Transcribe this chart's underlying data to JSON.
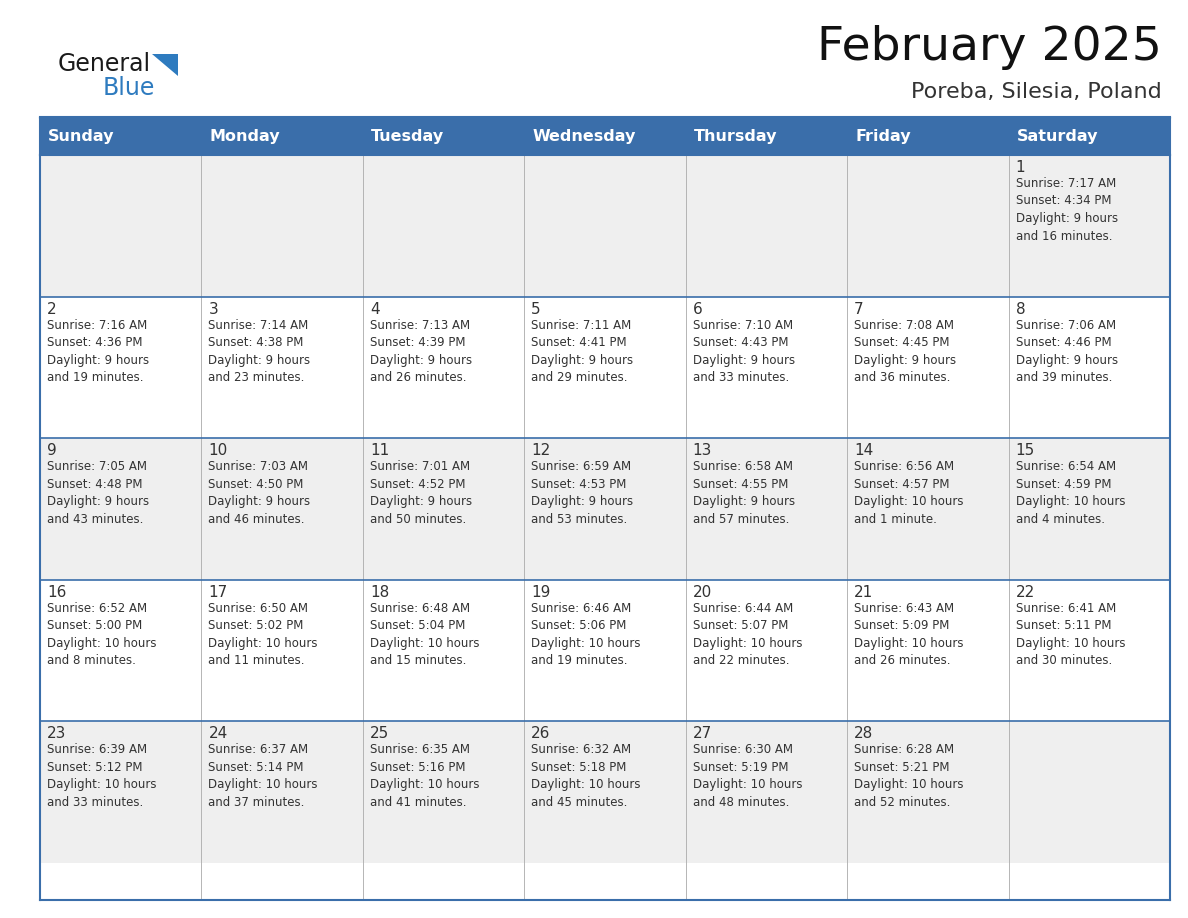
{
  "title": "February 2025",
  "subtitle": "Poreba, Silesia, Poland",
  "header_bg": "#3A6EAA",
  "header_text_color": "#FFFFFF",
  "cell_bg_light": "#EFEFEF",
  "cell_bg_white": "#FFFFFF",
  "border_color": "#3A6EAA",
  "grid_color": "#AAAAAA",
  "day_names": [
    "Sunday",
    "Monday",
    "Tuesday",
    "Wednesday",
    "Thursday",
    "Friday",
    "Saturday"
  ],
  "text_color": "#333333",
  "day_number_color": "#333333",
  "logo_general_color": "#1a1a1a",
  "logo_blue_color": "#2E7BBF",
  "weeks": [
    [
      {
        "day": 0,
        "text": ""
      },
      {
        "day": 0,
        "text": ""
      },
      {
        "day": 0,
        "text": ""
      },
      {
        "day": 0,
        "text": ""
      },
      {
        "day": 0,
        "text": ""
      },
      {
        "day": 0,
        "text": ""
      },
      {
        "day": 1,
        "text": "Sunrise: 7:17 AM\nSunset: 4:34 PM\nDaylight: 9 hours\nand 16 minutes."
      }
    ],
    [
      {
        "day": 2,
        "text": "Sunrise: 7:16 AM\nSunset: 4:36 PM\nDaylight: 9 hours\nand 19 minutes."
      },
      {
        "day": 3,
        "text": "Sunrise: 7:14 AM\nSunset: 4:38 PM\nDaylight: 9 hours\nand 23 minutes."
      },
      {
        "day": 4,
        "text": "Sunrise: 7:13 AM\nSunset: 4:39 PM\nDaylight: 9 hours\nand 26 minutes."
      },
      {
        "day": 5,
        "text": "Sunrise: 7:11 AM\nSunset: 4:41 PM\nDaylight: 9 hours\nand 29 minutes."
      },
      {
        "day": 6,
        "text": "Sunrise: 7:10 AM\nSunset: 4:43 PM\nDaylight: 9 hours\nand 33 minutes."
      },
      {
        "day": 7,
        "text": "Sunrise: 7:08 AM\nSunset: 4:45 PM\nDaylight: 9 hours\nand 36 minutes."
      },
      {
        "day": 8,
        "text": "Sunrise: 7:06 AM\nSunset: 4:46 PM\nDaylight: 9 hours\nand 39 minutes."
      }
    ],
    [
      {
        "day": 9,
        "text": "Sunrise: 7:05 AM\nSunset: 4:48 PM\nDaylight: 9 hours\nand 43 minutes."
      },
      {
        "day": 10,
        "text": "Sunrise: 7:03 AM\nSunset: 4:50 PM\nDaylight: 9 hours\nand 46 minutes."
      },
      {
        "day": 11,
        "text": "Sunrise: 7:01 AM\nSunset: 4:52 PM\nDaylight: 9 hours\nand 50 minutes."
      },
      {
        "day": 12,
        "text": "Sunrise: 6:59 AM\nSunset: 4:53 PM\nDaylight: 9 hours\nand 53 minutes."
      },
      {
        "day": 13,
        "text": "Sunrise: 6:58 AM\nSunset: 4:55 PM\nDaylight: 9 hours\nand 57 minutes."
      },
      {
        "day": 14,
        "text": "Sunrise: 6:56 AM\nSunset: 4:57 PM\nDaylight: 10 hours\nand 1 minute."
      },
      {
        "day": 15,
        "text": "Sunrise: 6:54 AM\nSunset: 4:59 PM\nDaylight: 10 hours\nand 4 minutes."
      }
    ],
    [
      {
        "day": 16,
        "text": "Sunrise: 6:52 AM\nSunset: 5:00 PM\nDaylight: 10 hours\nand 8 minutes."
      },
      {
        "day": 17,
        "text": "Sunrise: 6:50 AM\nSunset: 5:02 PM\nDaylight: 10 hours\nand 11 minutes."
      },
      {
        "day": 18,
        "text": "Sunrise: 6:48 AM\nSunset: 5:04 PM\nDaylight: 10 hours\nand 15 minutes."
      },
      {
        "day": 19,
        "text": "Sunrise: 6:46 AM\nSunset: 5:06 PM\nDaylight: 10 hours\nand 19 minutes."
      },
      {
        "day": 20,
        "text": "Sunrise: 6:44 AM\nSunset: 5:07 PM\nDaylight: 10 hours\nand 22 minutes."
      },
      {
        "day": 21,
        "text": "Sunrise: 6:43 AM\nSunset: 5:09 PM\nDaylight: 10 hours\nand 26 minutes."
      },
      {
        "day": 22,
        "text": "Sunrise: 6:41 AM\nSunset: 5:11 PM\nDaylight: 10 hours\nand 30 minutes."
      }
    ],
    [
      {
        "day": 23,
        "text": "Sunrise: 6:39 AM\nSunset: 5:12 PM\nDaylight: 10 hours\nand 33 minutes."
      },
      {
        "day": 24,
        "text": "Sunrise: 6:37 AM\nSunset: 5:14 PM\nDaylight: 10 hours\nand 37 minutes."
      },
      {
        "day": 25,
        "text": "Sunrise: 6:35 AM\nSunset: 5:16 PM\nDaylight: 10 hours\nand 41 minutes."
      },
      {
        "day": 26,
        "text": "Sunrise: 6:32 AM\nSunset: 5:18 PM\nDaylight: 10 hours\nand 45 minutes."
      },
      {
        "day": 27,
        "text": "Sunrise: 6:30 AM\nSunset: 5:19 PM\nDaylight: 10 hours\nand 48 minutes."
      },
      {
        "day": 28,
        "text": "Sunrise: 6:28 AM\nSunset: 5:21 PM\nDaylight: 10 hours\nand 52 minutes."
      },
      {
        "day": 0,
        "text": ""
      }
    ]
  ]
}
